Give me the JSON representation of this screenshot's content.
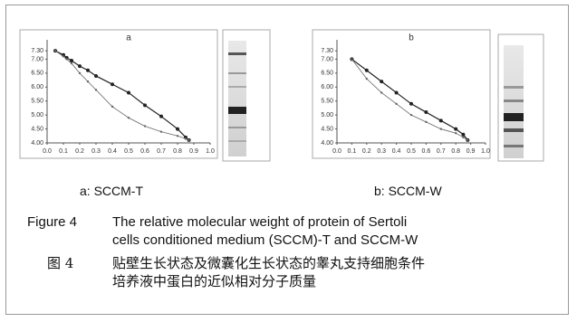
{
  "chart_data": [
    {
      "type": "line",
      "title": "a",
      "x": [
        0.05,
        0.1,
        0.12,
        0.15,
        0.2,
        0.25,
        0.3,
        0.4,
        0.5,
        0.6,
        0.7,
        0.8,
        0.85,
        0.87
      ],
      "series": [
        {
          "color": "#222",
          "values": [
            7.3,
            7.15,
            7.05,
            6.95,
            6.75,
            6.6,
            6.4,
            6.1,
            5.8,
            5.35,
            4.95,
            4.5,
            4.2,
            4.1
          ]
        },
        {
          "color": "#666",
          "values": [
            7.3,
            7.1,
            7.0,
            6.85,
            6.5,
            6.2,
            5.9,
            5.3,
            4.9,
            4.6,
            4.4,
            4.25,
            4.15,
            4.1
          ]
        }
      ],
      "xlim": [
        0,
        1.0
      ],
      "xticks": [
        {
          "value": 0,
          "label": "0.0"
        },
        0.1,
        0.2,
        0.3,
        0.4,
        0.5,
        0.6,
        0.7,
        0.8,
        0.9,
        {
          "value": 1,
          "label": "1.0"
        }
      ],
      "ylim": [
        4.0,
        7.5
      ],
      "yticks": [
        {
          "value": 4,
          "label": "4.00"
        },
        {
          "value": 4.5,
          "label": "4.50"
        },
        {
          "value": 5,
          "label": "5.00"
        },
        {
          "value": 5.5,
          "label": "5.50"
        },
        {
          "value": 6,
          "label": "6.00"
        },
        {
          "value": 6.5,
          "label": "6.50"
        },
        {
          "value": 7,
          "label": "7.00"
        },
        {
          "value": 7.3,
          "label": "7.30"
        }
      ]
    },
    {
      "type": "line",
      "title": "b",
      "x": [
        0.1,
        0.2,
        0.3,
        0.4,
        0.5,
        0.6,
        0.7,
        0.8,
        0.85,
        0.88
      ],
      "series": [
        {
          "color": "#222",
          "values": [
            7.0,
            6.6,
            6.2,
            5.8,
            5.4,
            5.1,
            4.8,
            4.5,
            4.3,
            4.1
          ]
        },
        {
          "color": "#666",
          "values": [
            7.0,
            6.3,
            5.8,
            5.4,
            5.0,
            4.75,
            4.5,
            4.35,
            4.2,
            4.1
          ]
        }
      ],
      "xlim": [
        0,
        1.0
      ],
      "xticks": [
        {
          "value": 0,
          "label": "0.0"
        },
        0.1,
        0.2,
        0.3,
        0.4,
        0.5,
        0.6,
        0.7,
        0.8,
        0.9,
        {
          "value": 1,
          "label": "1.0"
        }
      ],
      "ylim": [
        4.0,
        7.5
      ],
      "yticks": [
        {
          "value": 4,
          "label": "4.00"
        },
        {
          "value": 4.5,
          "label": "4.50"
        },
        {
          "value": 5,
          "label": "5.00"
        },
        {
          "value": 5.5,
          "label": "5.50"
        },
        {
          "value": 6,
          "label": "6.00"
        },
        {
          "value": 6.5,
          "label": "6.50"
        },
        {
          "value": 7,
          "label": "7.00"
        },
        {
          "value": 7.3,
          "label": "7.30"
        }
      ]
    }
  ],
  "captions": [
    "a: SCCM-T",
    "b: SCCM-W"
  ],
  "figure_caption": {
    "label_en": "Figure 4",
    "text_en": [
      "The relative molecular weight of protein of Sertoli",
      "cells conditioned medium (SCCM)-T and SCCM-W"
    ],
    "label_zh": "图 4",
    "text_zh": [
      "贴壁生长状态及微囊化生长状态的睾丸支持细胞条件",
      "培养液中蛋白的近似相对分子质量"
    ]
  }
}
